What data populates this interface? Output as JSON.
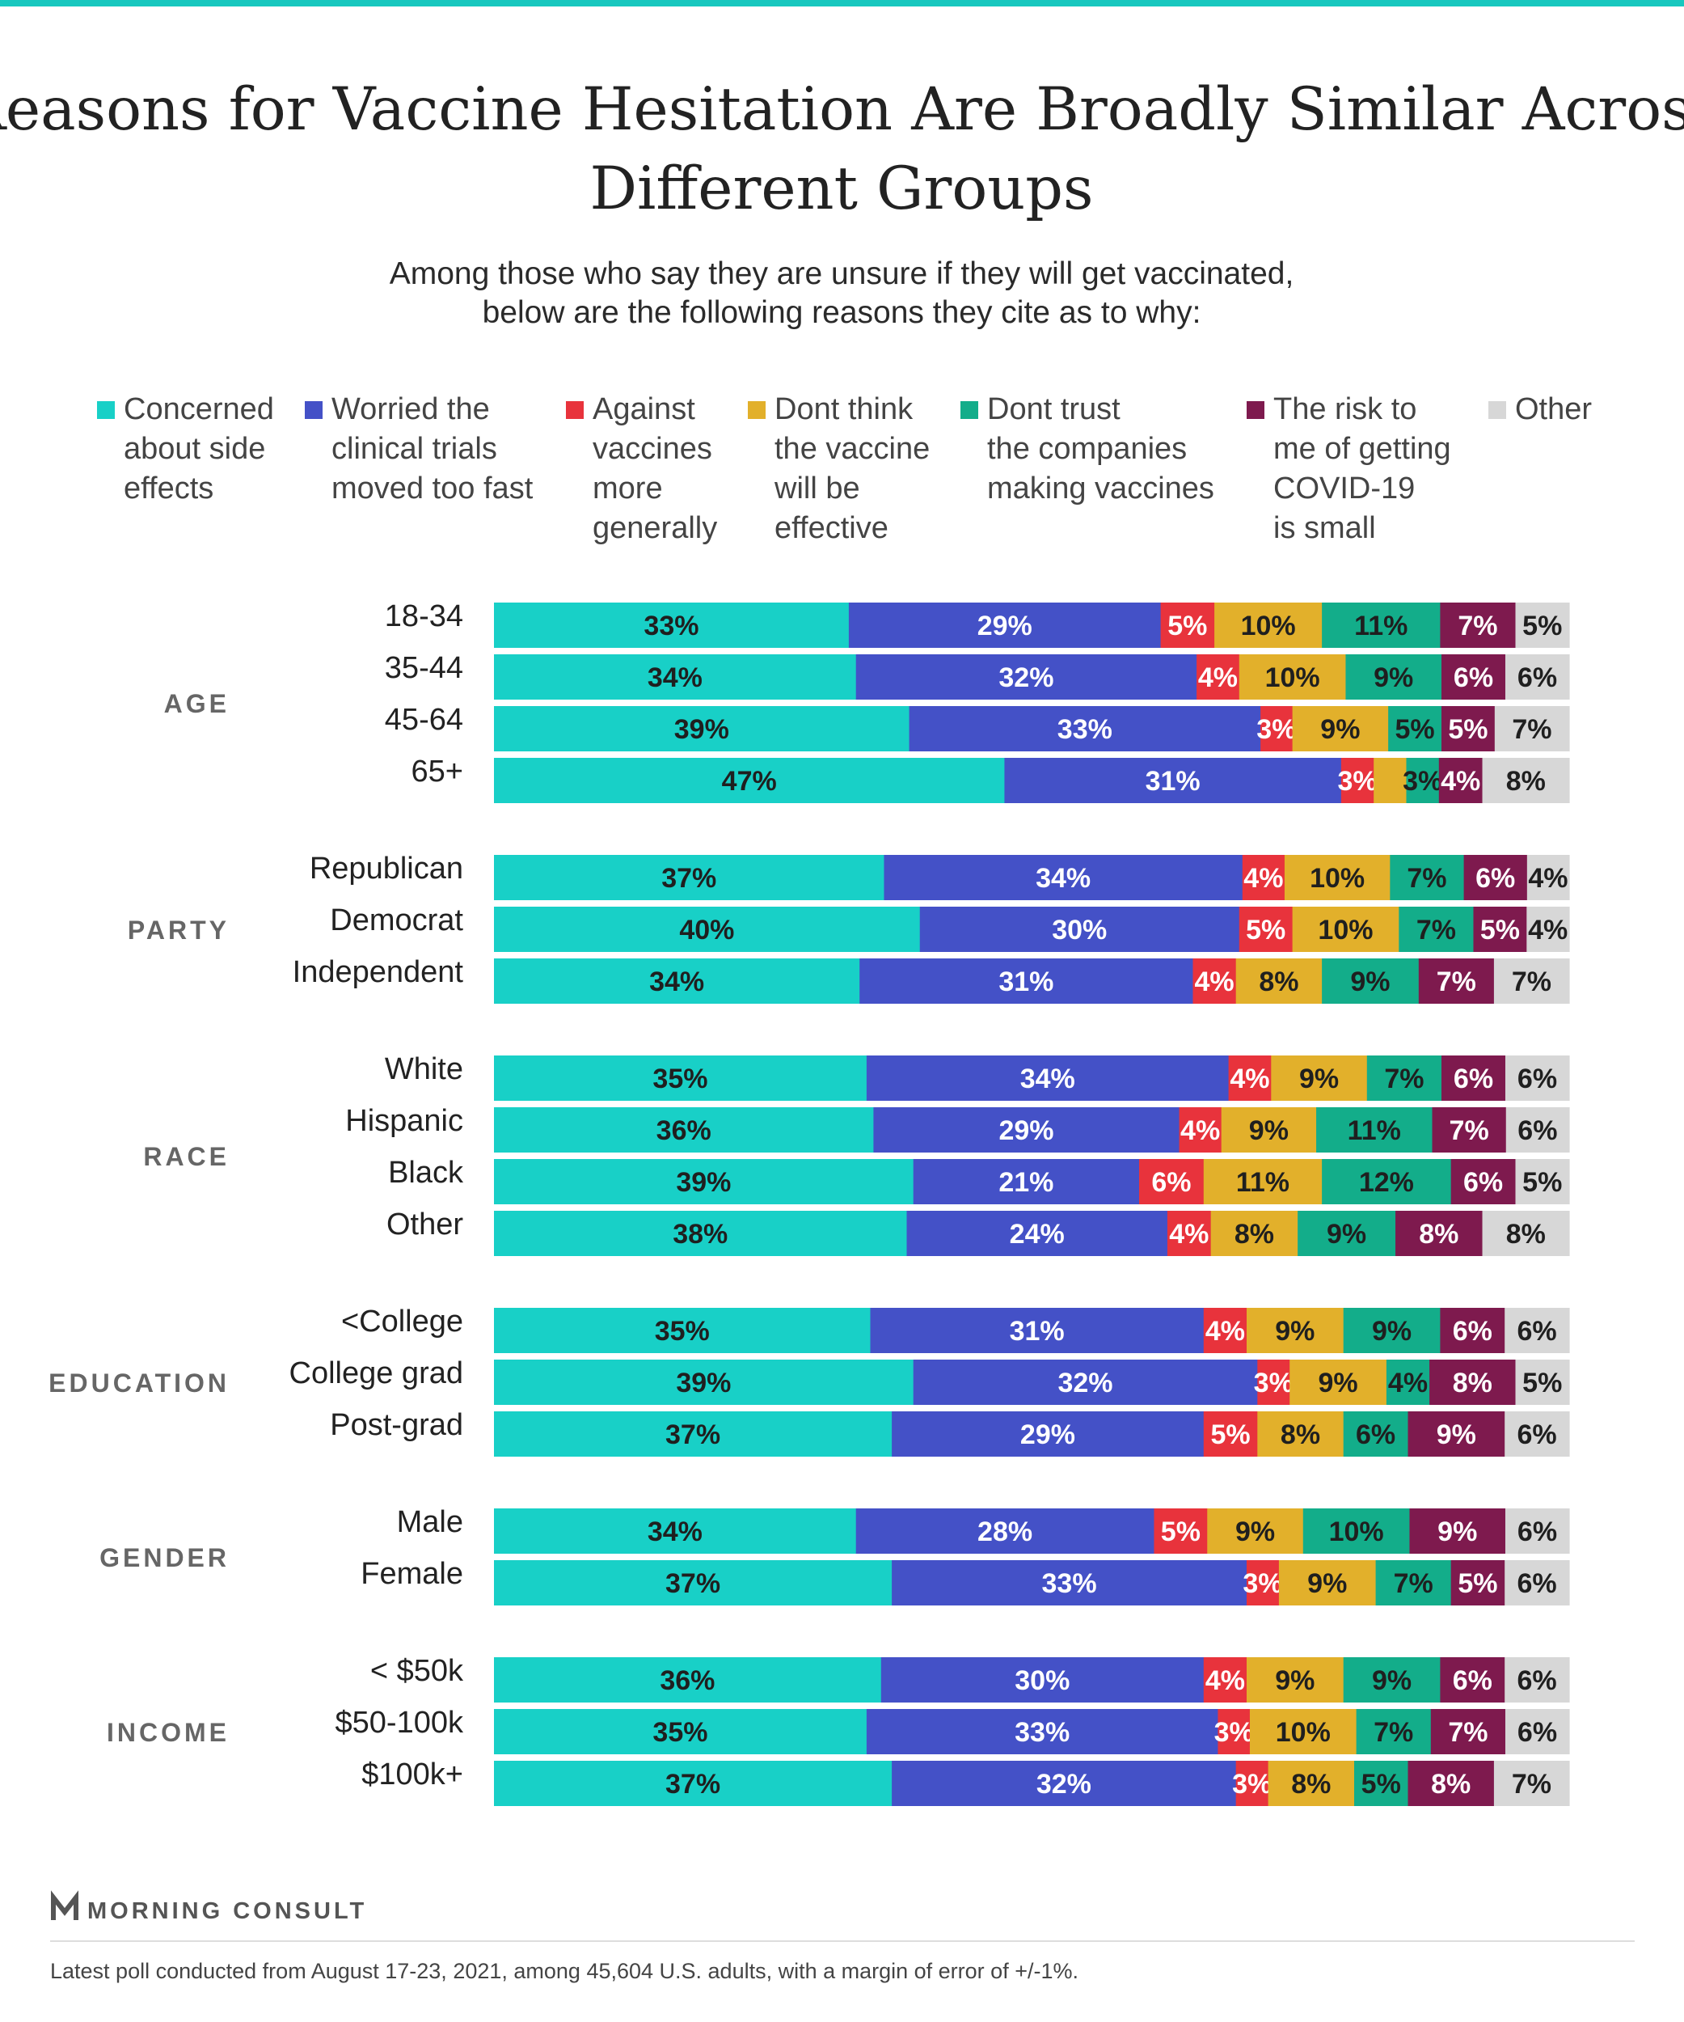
{
  "title_lines": [
    "Reasons for Vaccine Hesitation Are Broadly Similar Across",
    "Different Groups"
  ],
  "subtitle_lines": [
    "Among those who say they are unsure if they will get vaccinated,",
    "below are the following reasons they cite as to why:"
  ],
  "colors": {
    "concerned": "#18d0c7",
    "worried": "#4451c7",
    "against": "#e8333c",
    "dont_think": "#e2b02b",
    "dont_trust": "#13ad8a",
    "risk": "#7e1a4e",
    "other": "#d7d7d7"
  },
  "chart_data": {
    "type": "bar",
    "orientation": "horizontal",
    "stacked": true,
    "legend_placement": "top",
    "series": [
      {
        "name": "Concerned about side effects",
        "legend_lines": [
          "Concerned",
          "about side",
          "effects"
        ],
        "key": "concerned"
      },
      {
        "name": "Worried the clinical trials moved too fast",
        "legend_lines": [
          "Worried the",
          "clinical trials",
          "moved too fast"
        ],
        "key": "worried"
      },
      {
        "name": "Against vaccines more generally",
        "legend_lines": [
          "Against",
          "vaccines",
          "more",
          "generally"
        ],
        "key": "against"
      },
      {
        "name": "Dont think the vaccine will be effective",
        "legend_lines": [
          "Dont think",
          "the vaccine",
          "will be",
          "effective"
        ],
        "key": "dont_think"
      },
      {
        "name": "Dont trust the companies making vaccines",
        "legend_lines": [
          "Dont trust",
          "the companies",
          "making vaccines"
        ],
        "key": "dont_trust"
      },
      {
        "name": "The risk to me of getting COVID-19 is small",
        "legend_lines": [
          "The risk to",
          "me of getting",
          "COVID-19",
          "is small"
        ],
        "key": "risk"
      },
      {
        "name": "Other",
        "legend_lines": [
          "Other"
        ],
        "key": "other"
      }
    ],
    "groups": [
      {
        "label": "AGE",
        "rows": [
          {
            "label": "18-34",
            "values": [
              33,
              29,
              5,
              10,
              11,
              7,
              5
            ]
          },
          {
            "label": "35-44",
            "values": [
              34,
              32,
              4,
              10,
              9,
              6,
              6
            ]
          },
          {
            "label": "45-64",
            "values": [
              39,
              33,
              3,
              9,
              5,
              5,
              7
            ]
          },
          {
            "label": "65+",
            "values": [
              47,
              31,
              3,
              3,
              3,
              4,
              8
            ],
            "hidden_labels": [
              3
            ]
          }
        ]
      },
      {
        "label": "PARTY",
        "rows": [
          {
            "label": "Republican",
            "values": [
              37,
              34,
              4,
              10,
              7,
              6,
              4
            ]
          },
          {
            "label": "Democrat",
            "values": [
              40,
              30,
              5,
              10,
              7,
              5,
              4
            ]
          },
          {
            "label": "Independent",
            "values": [
              34,
              31,
              4,
              8,
              9,
              7,
              7
            ]
          }
        ]
      },
      {
        "label": "RACE",
        "rows": [
          {
            "label": "White",
            "values": [
              35,
              34,
              4,
              9,
              7,
              6,
              6
            ]
          },
          {
            "label": "Hispanic",
            "values": [
              36,
              29,
              4,
              9,
              11,
              7,
              6
            ]
          },
          {
            "label": "Black",
            "values": [
              39,
              21,
              6,
              11,
              12,
              6,
              5
            ]
          },
          {
            "label": "Other",
            "values": [
              38,
              24,
              4,
              8,
              9,
              8,
              8
            ]
          }
        ]
      },
      {
        "label": "EDUCATION",
        "rows": [
          {
            "label": "<College",
            "values": [
              35,
              31,
              4,
              9,
              9,
              6,
              6
            ]
          },
          {
            "label": "College grad",
            "values": [
              39,
              32,
              3,
              9,
              4,
              8,
              5
            ]
          },
          {
            "label": "Post-grad",
            "values": [
              37,
              29,
              5,
              8,
              6,
              9,
              6
            ]
          }
        ]
      },
      {
        "label": "GENDER",
        "rows": [
          {
            "label": "Male",
            "values": [
              34,
              28,
              5,
              9,
              10,
              9,
              6
            ]
          },
          {
            "label": "Female",
            "values": [
              37,
              33,
              3,
              9,
              7,
              5,
              6
            ]
          }
        ]
      },
      {
        "label": "INCOME",
        "rows": [
          {
            "label": "< $50k",
            "values": [
              36,
              30,
              4,
              9,
              9,
              6,
              6
            ]
          },
          {
            "label": "$50-100k",
            "values": [
              35,
              33,
              3,
              10,
              7,
              7,
              6
            ]
          },
          {
            "label": "$100k+",
            "values": [
              37,
              32,
              3,
              8,
              5,
              8,
              7
            ]
          }
        ]
      }
    ],
    "value_suffix": "%"
  },
  "brand": "MORNING CONSULT",
  "footnote": "Latest poll conducted from August 17-23, 2021, among 45,604 U.S. adults, with a margin of error of +/-1%."
}
